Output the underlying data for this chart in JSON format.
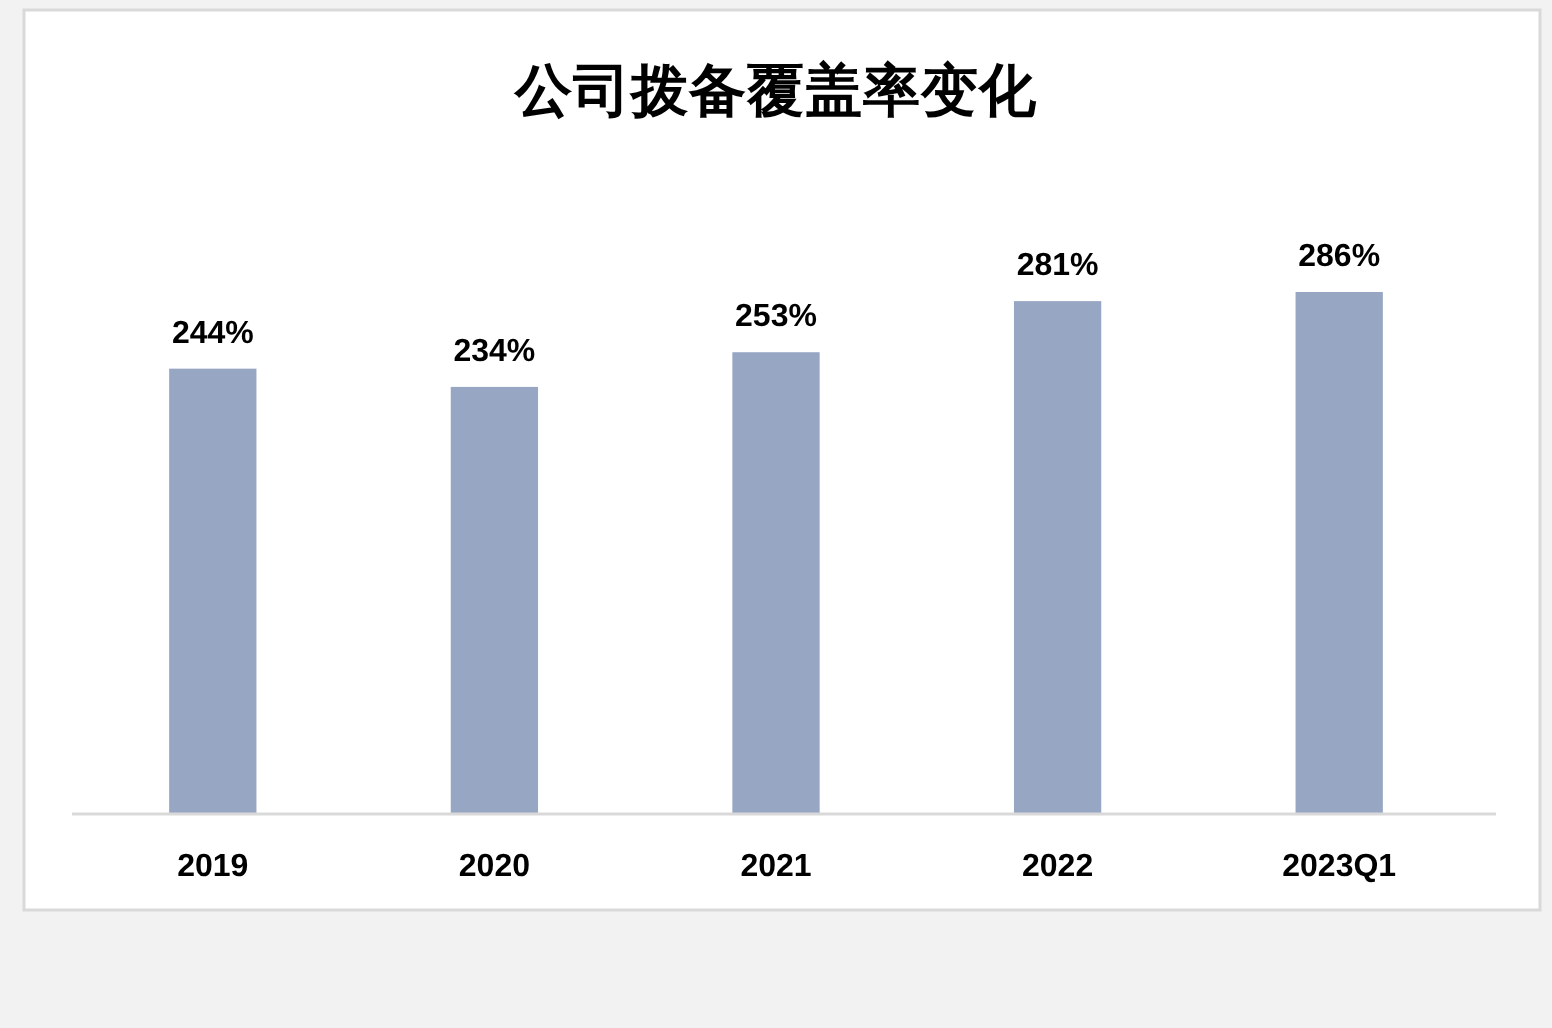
{
  "chart_data": {
    "type": "bar",
    "title": "公司拨备覆盖率变化",
    "categories": [
      "2019",
      "2020",
      "2021",
      "2022",
      "2023Q1"
    ],
    "values": [
      244,
      234,
      253,
      281,
      286
    ],
    "value_labels": [
      "244%",
      "234%",
      "253%",
      "281%",
      "286%"
    ],
    "color": "#97a6c2"
  }
}
